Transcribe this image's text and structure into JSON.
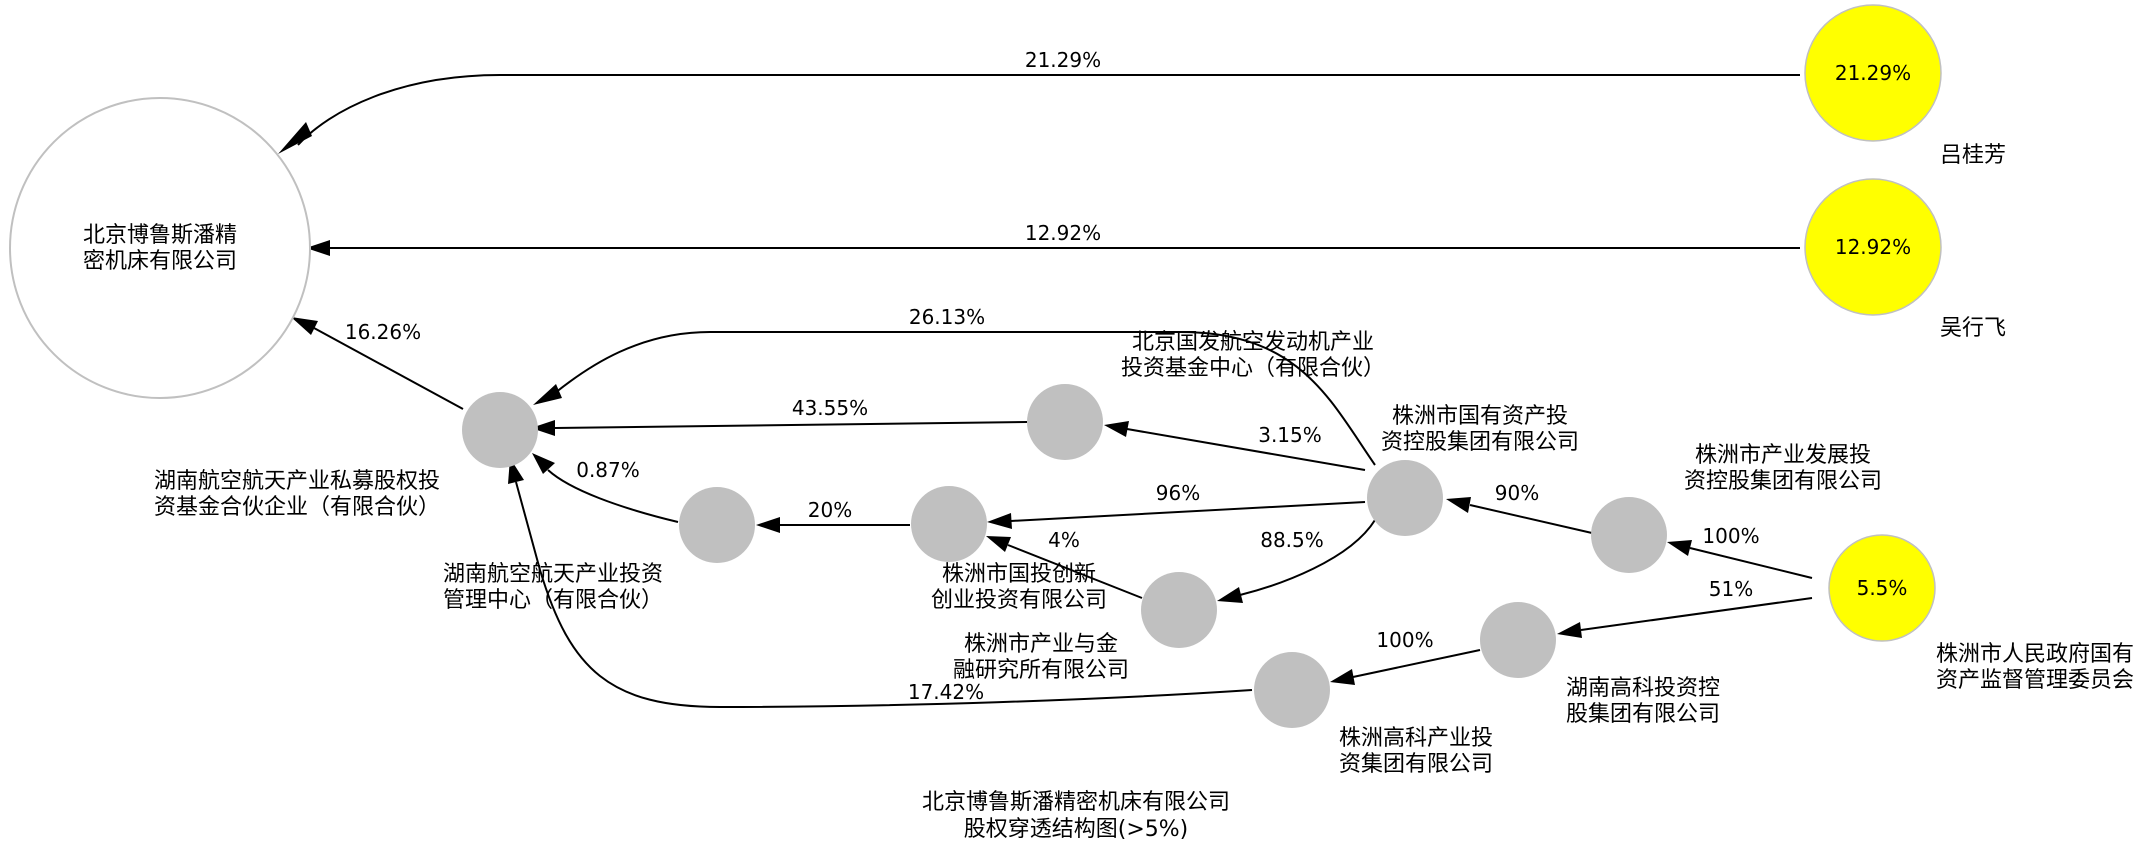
{
  "colors": {
    "shareholder": "#ffff00",
    "intermediate": "#c0c0c0",
    "edge": "#000000",
    "target_border": "#c0c0c0"
  },
  "diagram": {
    "title_lines": [
      "北京博鲁斯潘精密机床有限公司",
      "股权穿透结构图(>5%)"
    ],
    "nodes": {
      "target": {
        "label_lines": [
          "北京博鲁斯潘精",
          "密机床有限公司"
        ]
      },
      "lv_guifang": {
        "name": "吕桂芳",
        "inner": "21.29%"
      },
      "wu_xingfei": {
        "name": "吴行飞",
        "inner": "12.92%"
      },
      "zhuzhou_gov": {
        "name_lines": [
          "株洲市人民政府国有",
          "资产监督管理委员会"
        ],
        "inner": "5.5%"
      },
      "hunan_fund": {
        "name_lines": [
          "湖南航空航天产业私募股权投",
          "资基金合伙企业（有限合伙）"
        ]
      },
      "beijing_guofa": {
        "name_lines": [
          "北京国发航空发动机产业",
          "投资基金中心（有限合伙）"
        ]
      },
      "hunan_mgmt": {
        "name_lines": [
          "湖南航空航天产业投资",
          "管理中心（有限合伙）"
        ]
      },
      "zhuzhou_guotou": {
        "name_lines": [
          "株洲市国投创新",
          "创业投资有限公司"
        ]
      },
      "zhuzhou_guoyou": {
        "name_lines": [
          "株洲市国有资产投",
          "资控股集团有限公司"
        ]
      },
      "zhuzhou_fin": {
        "name_lines": [
          "株洲市产业与金",
          "融研究所有限公司"
        ]
      },
      "zhuzhou_dev": {
        "name_lines": [
          "株洲市产业发展投",
          "资控股集团有限公司"
        ]
      },
      "hunan_hitech": {
        "name_lines": [
          "湖南高科投资控",
          "股集团有限公司"
        ]
      },
      "zhuzhou_hitech": {
        "name_lines": [
          "株洲高科产业投",
          "资集团有限公司"
        ]
      }
    },
    "edges": [
      {
        "id": "lv-target",
        "label": "21.29%"
      },
      {
        "id": "wu-target",
        "label": "12.92%"
      },
      {
        "id": "fund-target",
        "label": "16.26%"
      },
      {
        "id": "guoyou-fund",
        "label": "26.13%"
      },
      {
        "id": "guofa-fund",
        "label": "43.55%"
      },
      {
        "id": "mgmt-fund",
        "label": "0.87%"
      },
      {
        "id": "hitech-fund",
        "label": "17.42%"
      },
      {
        "id": "guoyou-guofa",
        "label": "3.15%"
      },
      {
        "id": "guotou-mgmt",
        "label": "20%"
      },
      {
        "id": "guoyou-guotou",
        "label": "96%"
      },
      {
        "id": "fin-guotou",
        "label": "4%"
      },
      {
        "id": "guoyou-fin",
        "label": "88.5%"
      },
      {
        "id": "dev-guoyou",
        "label": "90%"
      },
      {
        "id": "gov-dev",
        "label": "100%"
      },
      {
        "id": "gov-hunanhitech",
        "label": "51%"
      },
      {
        "id": "hunanhitech-hitech",
        "label": "100%"
      }
    ]
  }
}
